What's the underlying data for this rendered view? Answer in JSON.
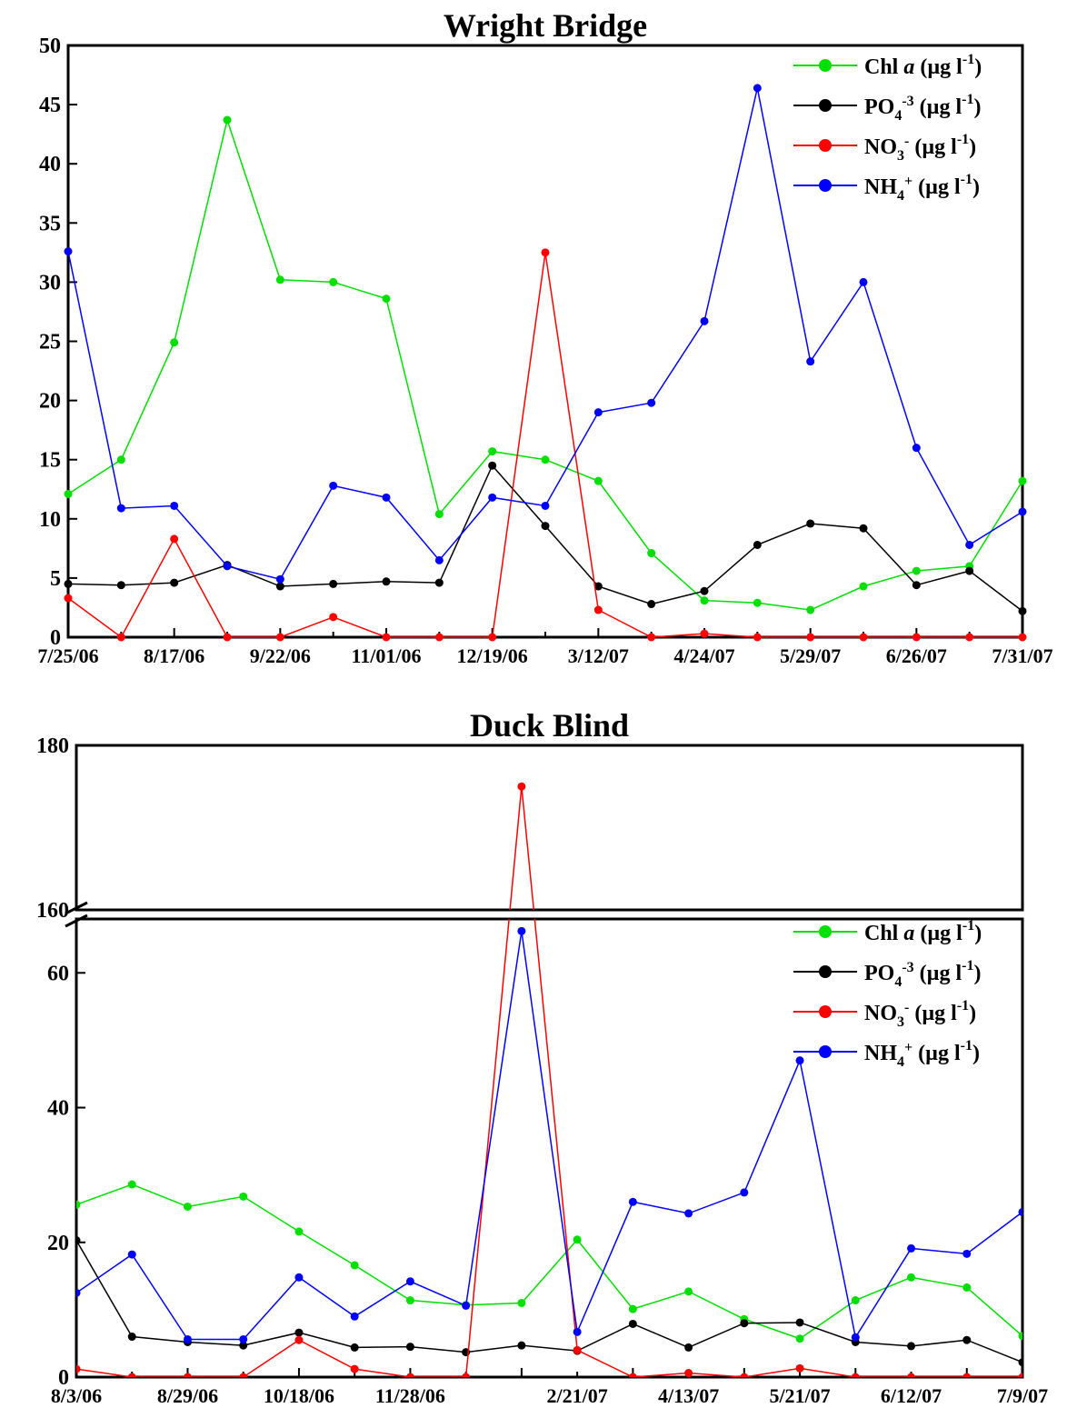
{
  "chart_data": [
    {
      "type": "line",
      "title": "Wright Bridge",
      "xlabel": "",
      "ylabel": "",
      "ylim": [
        0,
        50
      ],
      "yticks": [
        0,
        5,
        10,
        15,
        20,
        25,
        30,
        35,
        40,
        45,
        50
      ],
      "x_tick_labels": [
        "7/25/06",
        "8/17/06",
        "9/22/06",
        "11/01/06",
        "12/19/06",
        "3/12/07",
        "4/24/07",
        "5/29/07",
        "6/26/07",
        "7/31/07"
      ],
      "legend_position": "top-right",
      "grid": false,
      "series": [
        {
          "name": "Chl a (µg l-1)",
          "color": "#00e000",
          "values": [
            12.1,
            15.0,
            24.9,
            43.7,
            30.2,
            30.0,
            28.6,
            10.4,
            15.7,
            15.0,
            13.2,
            7.1,
            3.1,
            2.9,
            2.3,
            4.3,
            5.6,
            6.0,
            13.2
          ]
        },
        {
          "name": "PO4-3 (µg l-1)",
          "color": "#000000",
          "values": [
            4.5,
            4.4,
            4.6,
            6.1,
            4.3,
            4.5,
            4.7,
            4.6,
            14.5,
            9.4,
            4.3,
            2.8,
            3.9,
            7.8,
            9.6,
            9.2,
            4.4,
            5.6,
            2.2
          ]
        },
        {
          "name": "NO3- (µg l-1)",
          "color": "#ff0000",
          "values": [
            3.3,
            0,
            8.3,
            0,
            0,
            1.7,
            0,
            0,
            0,
            32.5,
            2.3,
            0,
            0.3,
            0,
            0,
            0,
            0,
            0,
            0
          ]
        },
        {
          "name": "NH4+ (µg l-1)",
          "color": "#0000ff",
          "values": [
            32.6,
            10.9,
            11.1,
            6.0,
            4.9,
            12.8,
            11.8,
            6.5,
            11.8,
            11.1,
            19.0,
            19.8,
            26.7,
            46.4,
            23.3,
            30.0,
            16.0,
            7.8,
            10.6
          ]
        }
      ]
    },
    {
      "type": "line",
      "title": "Duck Blind",
      "xlabel": "",
      "ylabel": "",
      "ylim": [
        0,
        180
      ],
      "axis_break": [
        68,
        160
      ],
      "yticks_lower": [
        0,
        20,
        40,
        60
      ],
      "yticks_upper": [
        160,
        180
      ],
      "x_tick_labels": [
        "8/3/06",
        "8/29/06",
        "10/18/06",
        "11/28/06",
        "2/21/07",
        "4/13/07",
        "5/21/07",
        "6/12/07",
        "7/9/07"
      ],
      "legend_position": "top-right",
      "grid": false,
      "series": [
        {
          "name": "Chl a (µg l-1)",
          "color": "#00e000",
          "values": [
            25.6,
            28.6,
            25.3,
            26.8,
            21.6,
            16.6,
            11.4,
            10.7,
            11.0,
            20.4,
            10.1,
            12.7,
            8.6,
            5.7,
            11.4,
            14.8,
            13.3,
            6.1
          ]
        },
        {
          "name": "PO4-3 (µg l-1)",
          "color": "#000000",
          "values": [
            20.3,
            6.0,
            5.2,
            4.7,
            6.6,
            4.4,
            4.5,
            3.7,
            4.7,
            3.9,
            7.9,
            4.4,
            8.0,
            8.1,
            5.2,
            4.6,
            5.5,
            2.2
          ]
        },
        {
          "name": "NO3- (µg l-1)",
          "color": "#ff0000",
          "values": [
            1.2,
            0,
            0,
            0,
            5.5,
            1.2,
            0,
            0,
            175,
            4.0,
            0,
            0.6,
            0,
            1.3,
            0,
            0,
            0,
            0
          ]
        },
        {
          "name": "NH4+ (µg l-1)",
          "color": "#0000ff",
          "values": [
            12.5,
            18.2,
            5.6,
            5.6,
            14.8,
            9.0,
            14.2,
            10.6,
            66.2,
            6.7,
            26.0,
            24.3,
            27.4,
            47.0,
            5.9,
            19.1,
            18.3,
            24.5
          ]
        }
      ]
    }
  ]
}
